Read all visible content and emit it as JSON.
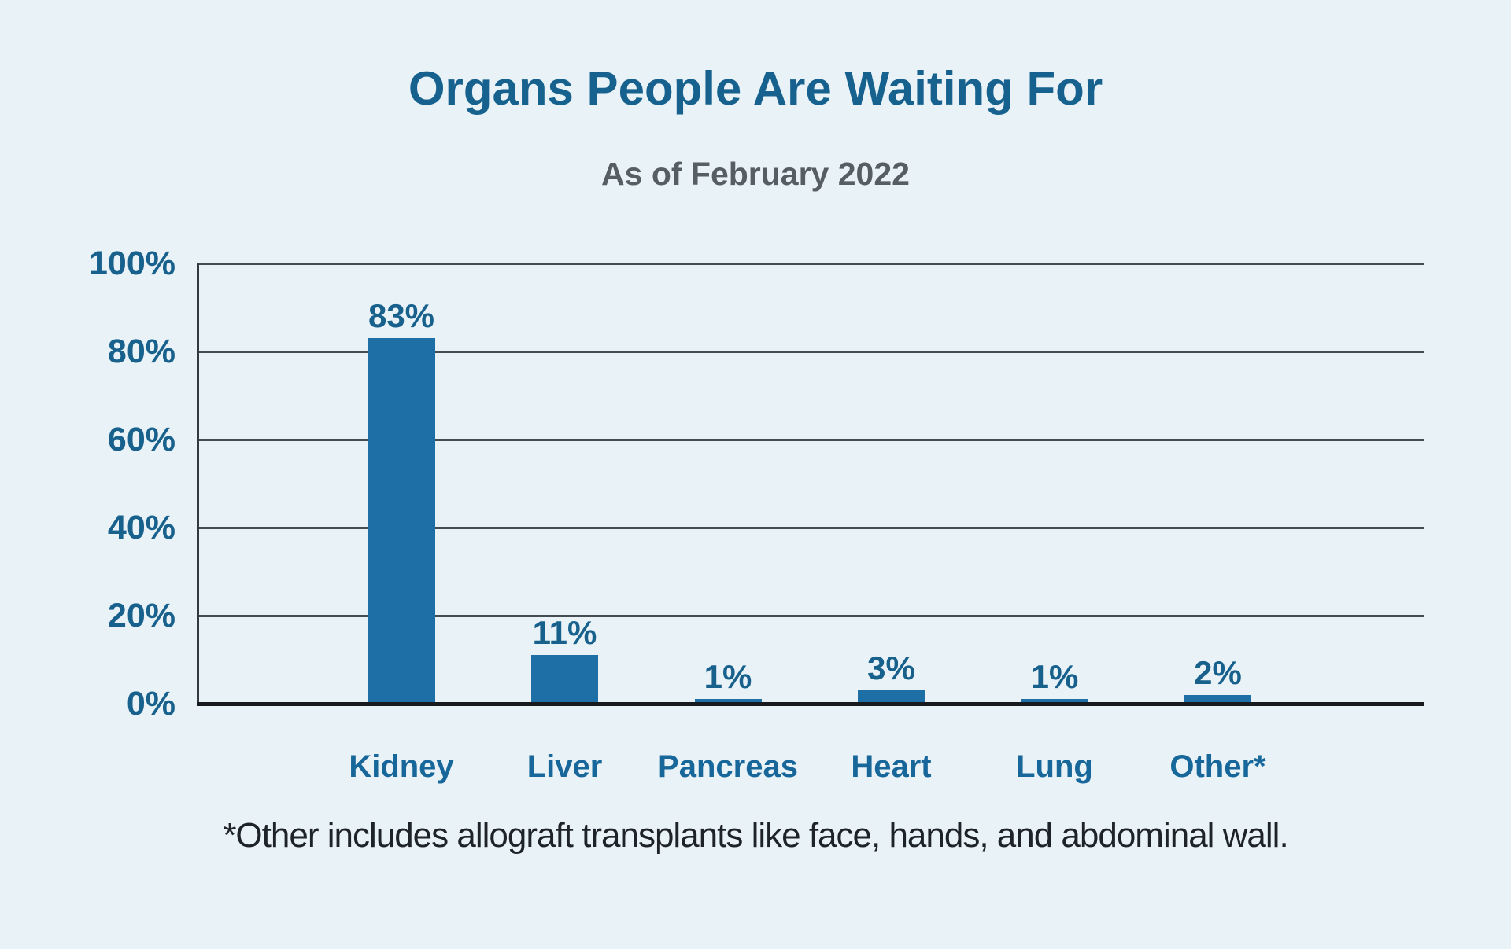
{
  "header": {
    "title": "Organs People Are Waiting For",
    "subtitle": "As of February 2022"
  },
  "footnote": "*Other includes allograft transplants like face, hands, and abdominal wall.",
  "colors": {
    "background": "#e9f2f7",
    "bar": "#1d6fa5",
    "title_text": "#16618e",
    "subtitle_text": "#565d63",
    "axis_label_text": "#17618c",
    "gridline": "#454d52",
    "baseline": "#171b1e",
    "footnote_text": "#1e2327"
  },
  "chart_data": {
    "type": "bar",
    "title": "Organs People Are Waiting For",
    "subtitle": "As of February 2022",
    "categories": [
      "Kidney",
      "Liver",
      "Pancreas",
      "Heart",
      "Lung",
      "Other*"
    ],
    "values": [
      83,
      11,
      1,
      3,
      1,
      2
    ],
    "value_labels": [
      "83%",
      "11%",
      "1%",
      "3%",
      "1%",
      "2%"
    ],
    "xlabel": "",
    "ylabel": "",
    "ylim": [
      0,
      100
    ],
    "yticks": [
      0,
      20,
      40,
      60,
      80,
      100
    ],
    "ytick_labels": [
      "0%",
      "20%",
      "40%",
      "60%",
      "80%",
      "100%"
    ],
    "grid": "horizontal",
    "legend": "none",
    "footnote": "*Other includes allograft transplants like face, hands, and abdominal wall."
  }
}
